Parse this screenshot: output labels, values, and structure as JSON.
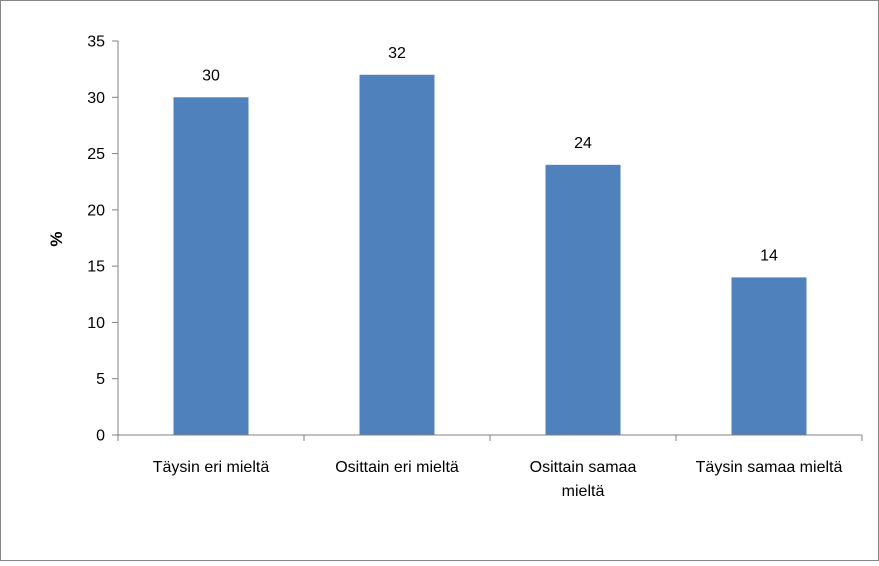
{
  "chart_data": {
    "type": "bar",
    "title": "",
    "xlabel": "",
    "ylabel": "%",
    "categories": [
      [
        "Täysin eri mieltä"
      ],
      [
        "Osittain eri mieltä"
      ],
      [
        "Osittain samaa",
        "mieltä"
      ],
      [
        "Täysin samaa mieltä"
      ]
    ],
    "values": [
      30,
      32,
      24,
      14
    ],
    "data_labels": [
      "30",
      "32",
      "24",
      "14"
    ],
    "ylim": [
      0,
      35
    ],
    "yticks": [
      0,
      5,
      10,
      15,
      20,
      25,
      30,
      35
    ],
    "ytick_labels": [
      "0",
      "5",
      "10",
      "15",
      "20",
      "25",
      "30",
      "35"
    ],
    "grid": false,
    "legend": "none",
    "colors": {
      "bar": "#4F81BD",
      "axis": "#808080",
      "frame": "#868686"
    }
  }
}
